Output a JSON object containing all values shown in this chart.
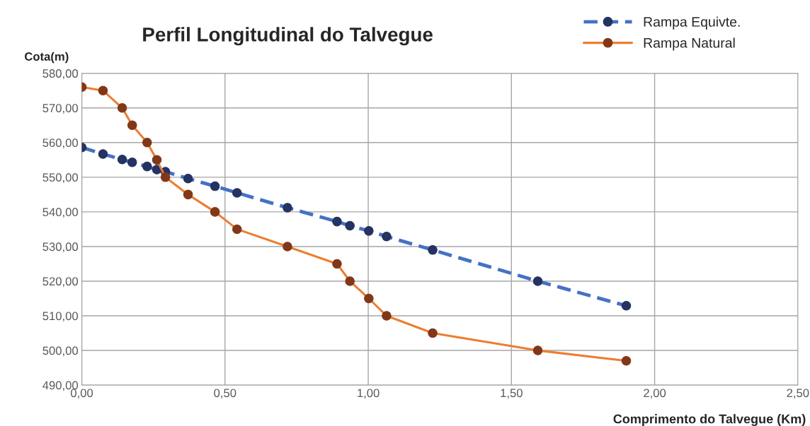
{
  "chart_data": {
    "type": "line",
    "title": "Perfil Longitudinal do Talvegue",
    "xlabel": "Comprimento do Talvegue (Km)",
    "ylabel": "Cota(m)",
    "x": [
      0,
      0.074,
      0.141,
      0.176,
      0.228,
      0.262,
      0.292,
      0.371,
      0.465,
      0.542,
      0.718,
      0.891,
      0.936,
      1.002,
      1.064,
      1.225,
      1.592,
      1.901
    ],
    "series": [
      {
        "name": "Rampa Equivte.",
        "color": "#4472c4",
        "line_style": "dashed",
        "values": [
          558.6,
          556.7,
          555.1,
          554.3,
          553.1,
          552.2,
          551.6,
          549.6,
          547.4,
          545.5,
          541.2,
          537.2,
          536.0,
          534.5,
          532.9,
          529.0,
          520.0,
          512.9
        ]
      },
      {
        "name": "Rampa Natural",
        "color": "#ed7d31",
        "line_style": "solid",
        "values": [
          576,
          575,
          570,
          565,
          560,
          555,
          550,
          545,
          540,
          535,
          530,
          525,
          520,
          515,
          510,
          505,
          500,
          497
        ]
      }
    ],
    "marker": "circle",
    "xlim": [
      0,
      2.5
    ],
    "xticks": [
      {
        "value": 0,
        "label": "0,00"
      },
      {
        "value": 0.5,
        "label": "0,50"
      },
      {
        "value": 1.0,
        "label": "1,00"
      },
      {
        "value": 1.5,
        "label": "1,50"
      },
      {
        "value": 2.0,
        "label": "2,00"
      },
      {
        "value": 2.5,
        "label": "2,50"
      }
    ],
    "ylim": [
      490,
      580
    ],
    "yticks": [
      {
        "value": 490,
        "label": "490,00"
      },
      {
        "value": 500,
        "label": "500,00"
      },
      {
        "value": 510,
        "label": "510,00"
      },
      {
        "value": 520,
        "label": "520,00"
      },
      {
        "value": 530,
        "label": "530,00"
      },
      {
        "value": 540,
        "label": "540,00"
      },
      {
        "value": 550,
        "label": "550,00"
      },
      {
        "value": 560,
        "label": "560,00"
      },
      {
        "value": 570,
        "label": "570,00"
      },
      {
        "value": 580,
        "label": "580,00"
      }
    ],
    "grid": true,
    "legend": "top right"
  }
}
